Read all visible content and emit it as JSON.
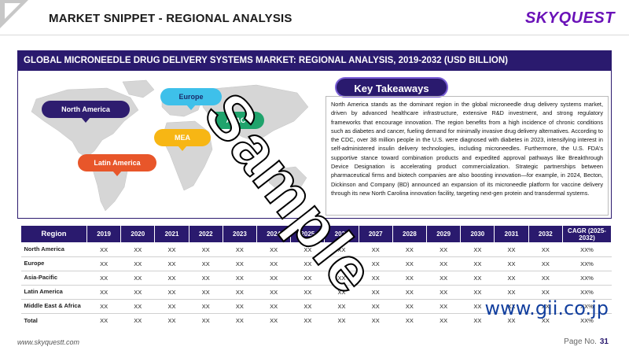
{
  "header": {
    "title": "MARKET SNIPPET - REGIONAL ANALYSIS",
    "brand": "SKYQUEST"
  },
  "panel": {
    "title": "GLOBAL MICRONEEDLE DRUG DELIVERY SYSTEMS MARKET: REGIONAL ANALYSIS, 2019-2032 (USD BILLION)"
  },
  "map": {
    "pins": {
      "north_america": "North America",
      "europe": "Europe",
      "apac": "APAC",
      "mea": "MEA",
      "latin_america": "Latin America"
    }
  },
  "takeaways": {
    "title": "Key Takeaways",
    "text": "North America stands as the dominant region in the global microneedle drug delivery systems market, driven by advanced healthcare infrastructure, extensive R&D investment, and strong regulatory frameworks that encourage innovation. The region benefits from a high incidence of chronic conditions such as diabetes and cancer, fueling demand for minimally invasive drug delivery alternatives. According to the CDC, over 38 million people in the U.S. were diagnosed with diabetes in 2023, intensifying interest in self-administered insulin delivery technologies, including microneedles. Furthermore, the U.S. FDA's supportive stance toward combination products and expedited approval pathways like Breakthrough Device Designation is accelerating product commercialization. Strategic partnerships between pharmaceutical firms and biotech companies are also boosting innovation—for example, in 2024, Becton, Dickinson and Company (BD) announced an expansion of its microneedle platform for vaccine delivery through its new North Carolina innovation facility, targeting next-gen protein and transdermal systems."
  },
  "table": {
    "region_header": "Region",
    "years": [
      "2019",
      "2020",
      "2021",
      "2022",
      "2023",
      "2024",
      "2025",
      "2026",
      "2027",
      "2028",
      "2029",
      "2030",
      "2031",
      "2032"
    ],
    "cagr_header": "CAGR (2025-2032)",
    "rows": [
      {
        "region": "North America",
        "values": [
          "XX",
          "XX",
          "XX",
          "XX",
          "XX",
          "XX",
          "XX",
          "XX",
          "XX",
          "XX",
          "XX",
          "XX",
          "XX",
          "XX"
        ],
        "cagr": "XX%"
      },
      {
        "region": "Europe",
        "values": [
          "XX",
          "XX",
          "XX",
          "XX",
          "XX",
          "XX",
          "XX",
          "XX",
          "XX",
          "XX",
          "XX",
          "XX",
          "XX",
          "XX"
        ],
        "cagr": "XX%"
      },
      {
        "region": "Asia-Pacific",
        "values": [
          "XX",
          "XX",
          "XX",
          "XX",
          "XX",
          "XX",
          "XX",
          "XX",
          "XX",
          "XX",
          "XX",
          "XX",
          "XX",
          "XX"
        ],
        "cagr": "XX%"
      },
      {
        "region": "Latin America",
        "values": [
          "XX",
          "XX",
          "XX",
          "XX",
          "XX",
          "XX",
          "XX",
          "XX",
          "XX",
          "XX",
          "XX",
          "XX",
          "XX",
          "XX"
        ],
        "cagr": "XX%"
      },
      {
        "region": "Middle East & Africa",
        "values": [
          "XX",
          "XX",
          "XX",
          "XX",
          "XX",
          "XX",
          "XX",
          "XX",
          "XX",
          "XX",
          "XX",
          "XX",
          "XX",
          "XX"
        ],
        "cagr": "XX%"
      },
      {
        "region": "Total",
        "values": [
          "XX",
          "XX",
          "XX",
          "XX",
          "XX",
          "XX",
          "XX",
          "XX",
          "XX",
          "XX",
          "XX",
          "XX",
          "XX",
          "XX"
        ],
        "cagr": "XX%"
      }
    ]
  },
  "watermarks": {
    "sample": "Sample",
    "gii": "www.gii.co.jp"
  },
  "footer": {
    "url": "www.skyquestt.com",
    "page_label": "Page No.",
    "page_number": "31"
  },
  "colors": {
    "navy": "#2a1a6e",
    "brand_purple": "#6a12b8",
    "north_america": "#2e1d6f",
    "europe": "#3ec0ea",
    "apac": "#1fa36c",
    "mea": "#f7b614",
    "latin_america": "#e8562a"
  }
}
